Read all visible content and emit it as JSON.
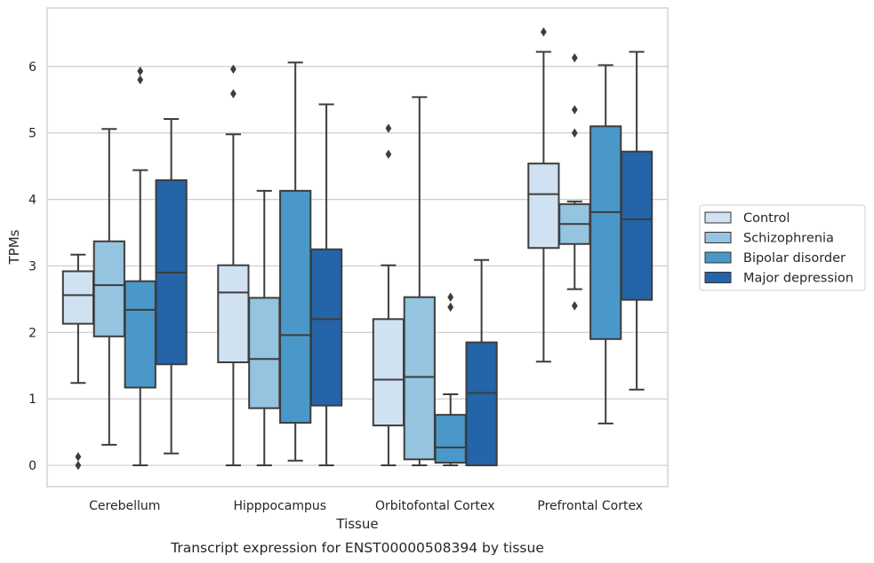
{
  "chart_data": {
    "type": "box",
    "caption": "Transcript expression for ENST00000508394 by tissue",
    "xlabel": "Tissue",
    "ylabel": "TPMs",
    "ylim": [
      -0.32,
      6.88
    ],
    "yticks": [
      0,
      1,
      2,
      3,
      4,
      5,
      6
    ],
    "grid": "horizontal",
    "legend_position": "right",
    "categories": [
      "Cerebellum",
      "Hipppocampus",
      "Orbitofontal Cortex",
      "Prefrontal Cortex"
    ],
    "series": [
      {
        "name": "Control",
        "color": "#d0e1f2",
        "boxes": [
          {
            "whislo": 1.24,
            "q1": 2.13,
            "med": 2.56,
            "q3": 2.92,
            "whishi": 3.17,
            "fliers": [
              0.13,
              0.0
            ]
          },
          {
            "whislo": 0.0,
            "q1": 1.55,
            "med": 2.6,
            "q3": 3.01,
            "whishi": 4.98,
            "fliers": [
              5.96,
              5.59
            ]
          },
          {
            "whislo": 0.0,
            "q1": 0.6,
            "med": 1.29,
            "q3": 2.2,
            "whishi": 3.01,
            "fliers": [
              5.07,
              4.68
            ]
          },
          {
            "whislo": 1.56,
            "q1": 3.27,
            "med": 4.08,
            "q3": 4.54,
            "whishi": 6.22,
            "fliers": [
              6.52
            ]
          }
        ]
      },
      {
        "name": "Schizophrenia",
        "color": "#94c4df",
        "boxes": [
          {
            "whislo": 0.31,
            "q1": 1.94,
            "med": 2.71,
            "q3": 3.37,
            "whishi": 5.06,
            "fliers": []
          },
          {
            "whislo": 0.0,
            "q1": 0.86,
            "med": 1.6,
            "q3": 2.52,
            "whishi": 4.13,
            "fliers": []
          },
          {
            "whislo": 0.0,
            "q1": 0.09,
            "med": 1.33,
            "q3": 2.53,
            "whishi": 5.54,
            "fliers": []
          },
          {
            "whislo": 2.65,
            "q1": 3.33,
            "med": 3.63,
            "q3": 3.93,
            "whishi": 3.97,
            "fliers": [
              6.13,
              5.35,
              5.0,
              2.4
            ]
          }
        ]
      },
      {
        "name": "Bipolar disorder",
        "color": "#4a98c9",
        "boxes": [
          {
            "whislo": 0.0,
            "q1": 1.17,
            "med": 2.34,
            "q3": 2.77,
            "whishi": 4.44,
            "fliers": [
              5.93,
              5.8
            ]
          },
          {
            "whislo": 0.07,
            "q1": 0.64,
            "med": 1.96,
            "q3": 4.13,
            "whishi": 6.06,
            "fliers": []
          },
          {
            "whislo": 0.0,
            "q1": 0.04,
            "med": 0.27,
            "q3": 0.76,
            "whishi": 1.07,
            "fliers": [
              2.53,
              2.38
            ]
          },
          {
            "whislo": 0.63,
            "q1": 1.9,
            "med": 3.81,
            "q3": 5.1,
            "whishi": 6.02,
            "fliers": []
          }
        ]
      },
      {
        "name": "Major depression",
        "color": "#2464a8",
        "boxes": [
          {
            "whislo": 0.18,
            "q1": 1.52,
            "med": 2.9,
            "q3": 4.29,
            "whishi": 5.21,
            "fliers": []
          },
          {
            "whislo": 0.0,
            "q1": 0.9,
            "med": 2.2,
            "q3": 3.25,
            "whishi": 5.43,
            "fliers": []
          },
          {
            "whislo": 0.0,
            "q1": 0.0,
            "med": 1.09,
            "q3": 1.85,
            "whishi": 3.09,
            "fliers": []
          },
          {
            "whislo": 1.14,
            "q1": 2.49,
            "med": 3.7,
            "q3": 4.72,
            "whishi": 6.22,
            "fliers": []
          }
        ]
      }
    ]
  }
}
